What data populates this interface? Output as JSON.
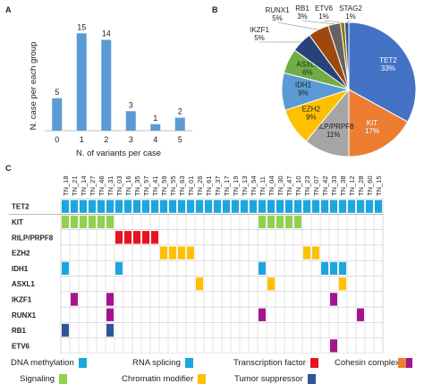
{
  "panels": {
    "a": "A",
    "b": "B",
    "c": "C"
  },
  "chart_data": [
    {
      "type": "bar",
      "categories": [
        "0",
        "1",
        "2",
        "3",
        "4",
        "5"
      ],
      "values": [
        5,
        15,
        14,
        3,
        1,
        2
      ],
      "xlabel": "N. of variants per case",
      "ylabel": "N. case per each group",
      "ylim": [
        0,
        16
      ],
      "grid": false,
      "color": "#5b9bd5"
    },
    {
      "type": "pie",
      "slices": [
        {
          "name": "TET2",
          "value": 33,
          "label": "33%",
          "color": "#4472c4"
        },
        {
          "name": "KIT",
          "value": 17,
          "label": "17%",
          "color": "#ed7d31"
        },
        {
          "name": "RILP/PRPF8",
          "value": 11,
          "label": "11%",
          "color": "#a5a5a5"
        },
        {
          "name": "EZH2",
          "value": 9,
          "label": "9%",
          "color": "#ffc000"
        },
        {
          "name": "IDH1",
          "value": 9,
          "label": "9%",
          "color": "#5b9bd5"
        },
        {
          "name": "ASXL1",
          "value": 6,
          "label": "6%",
          "color": "#70ad47"
        },
        {
          "name": "IKZF1",
          "value": 5,
          "label": "5%",
          "color": "#264478"
        },
        {
          "name": "RUNX1",
          "value": 5,
          "label": "5%",
          "color": "#9e480e"
        },
        {
          "name": "RB1",
          "value": 3,
          "label": "3%",
          "color": "#636363"
        },
        {
          "name": "ETV6",
          "value": 1,
          "label": "1%",
          "color": "#997300"
        },
        {
          "name": "STAG2",
          "value": 1,
          "label": "1%",
          "color": "#255e91"
        }
      ]
    },
    {
      "type": "heatmap",
      "x": [
        "TN_18",
        "TN_21",
        "TN_14",
        "TN_27",
        "TN_46",
        "TN_31",
        "TN_03",
        "TN_16",
        "TN_35",
        "TN_57",
        "TN_41",
        "TN_59",
        "TN_55",
        "TN_63",
        "TN_01",
        "TN_26",
        "TN_61",
        "TN_37",
        "TN_17",
        "TN_19",
        "TN_13",
        "TN_54",
        "TN_11",
        "TN_04",
        "TN_30",
        "TN_47",
        "TN_10",
        "TN_23",
        "TN_07",
        "TN_42",
        "TN_33",
        "TN_38",
        "TN_12",
        "TN_28",
        "TN_60",
        "TN_15"
      ],
      "rows": [
        {
          "gene": "TET2",
          "category": "dna",
          "cells": [
            0,
            1,
            2,
            3,
            4,
            5,
            6,
            7,
            8,
            9,
            10,
            11,
            12,
            13,
            14,
            15,
            16,
            17,
            18,
            19,
            20,
            21,
            22,
            23,
            24,
            25,
            26,
            27,
            28,
            29,
            30,
            31,
            32,
            33,
            34,
            35
          ]
        },
        {
          "gene": "KIT",
          "category": "signaling",
          "cells": [
            0,
            1,
            2,
            3,
            4,
            5,
            22,
            23,
            24,
            25,
            26
          ]
        },
        {
          "gene": "RILP/PRPF8",
          "category": "tf",
          "cells": [
            6,
            7,
            8,
            9,
            10
          ]
        },
        {
          "gene": "EZH2",
          "category": "chromatin",
          "cells": [
            11,
            12,
            13,
            14,
            27,
            28
          ]
        },
        {
          "gene": "IDH1",
          "category": "dna",
          "cells": [
            0,
            6,
            22,
            29,
            30,
            31
          ]
        },
        {
          "gene": "ASXL1",
          "category": "chromatin",
          "cells": [
            15,
            23,
            31
          ]
        },
        {
          "gene": "IKZF1",
          "category": "cohesin",
          "cells": [
            1,
            5,
            30
          ]
        },
        {
          "gene": "RUNX1",
          "category": "cohesin",
          "cells": [
            5,
            22,
            33
          ]
        },
        {
          "gene": "RB1",
          "category": "tumor",
          "cells": [
            0,
            5
          ]
        },
        {
          "gene": "ETV6",
          "category": "cohesin",
          "cells": [
            30
          ]
        },
        {
          "gene": "STAG2",
          "category": "cohesin_complex",
          "cells": [
            5
          ]
        }
      ]
    }
  ],
  "legend": [
    {
      "key": "dna",
      "label": "DNA methylation",
      "color": "#1aa7e0"
    },
    {
      "key": "rna",
      "label": "RNA splicing",
      "color": "#1aa7e0"
    },
    {
      "key": "tf",
      "label": "Transcription factor",
      "color": "#e8131f"
    },
    {
      "key": "cohesin",
      "label": "Cohesin complex",
      "color": "#a3148d"
    },
    {
      "key": "cohesin_complex",
      "label": "",
      "color": "#ed7d31"
    },
    {
      "key": "signaling",
      "label": "Signaling",
      "color": "#92d050"
    },
    {
      "key": "chromatin",
      "label": "Chromatin modifier",
      "color": "#ffc000"
    },
    {
      "key": "tumor",
      "label": "Tumor suppressor",
      "color": "#2f5597"
    }
  ]
}
